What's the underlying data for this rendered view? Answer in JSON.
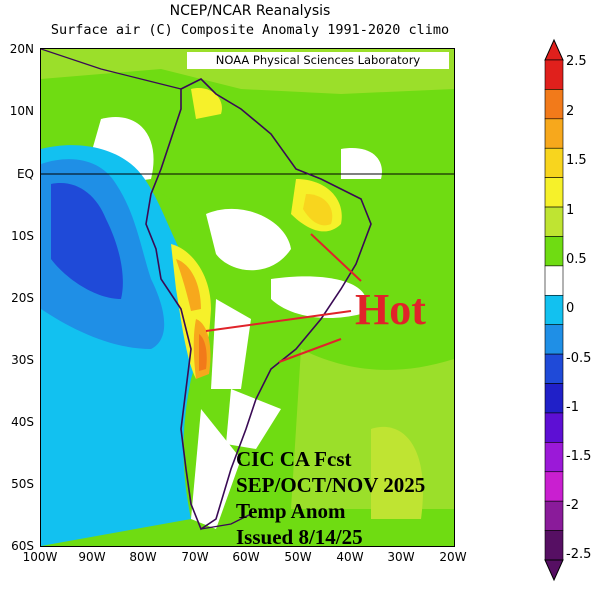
{
  "title": "NCEP/NCAR Reanalysis",
  "subtitle": "Surface air (C) Composite Anomaly 1991-2020 climo",
  "credit": "NOAA Physical Sciences Laboratory",
  "lat_labels": [
    "20N",
    "10N",
    "EQ",
    "10S",
    "20S",
    "30S",
    "40S",
    "50S",
    "60S"
  ],
  "lon_labels": [
    "100W",
    "90W",
    "80W",
    "70W",
    "60W",
    "50W",
    "40W",
    "30W",
    "20W"
  ],
  "colorbar": {
    "labels": [
      "2.5",
      "2",
      "1.5",
      "1",
      "0.5",
      "0",
      "-0.5",
      "-1",
      "-1.5",
      "-2",
      "-2.5"
    ],
    "colors": [
      "#e0201c",
      "#f27a1a",
      "#f7a81c",
      "#f8d51e",
      "#f6f12a",
      "#bfe432",
      "#6fdc12",
      "#ffffff",
      "#12c1f0",
      "#1f8fe6",
      "#1f4ad8",
      "#2020c8",
      "#5d0fd4",
      "#9b19d8",
      "#c91fd0",
      "#8a1b9a",
      "#560f63"
    ]
  },
  "annotation": {
    "hot_label": "Hot",
    "forecast_lines": [
      "CIC CA Fcst",
      "SEP/OCT/NOV 2025",
      "Temp Anom",
      "Issued 8/14/25"
    ]
  }
}
